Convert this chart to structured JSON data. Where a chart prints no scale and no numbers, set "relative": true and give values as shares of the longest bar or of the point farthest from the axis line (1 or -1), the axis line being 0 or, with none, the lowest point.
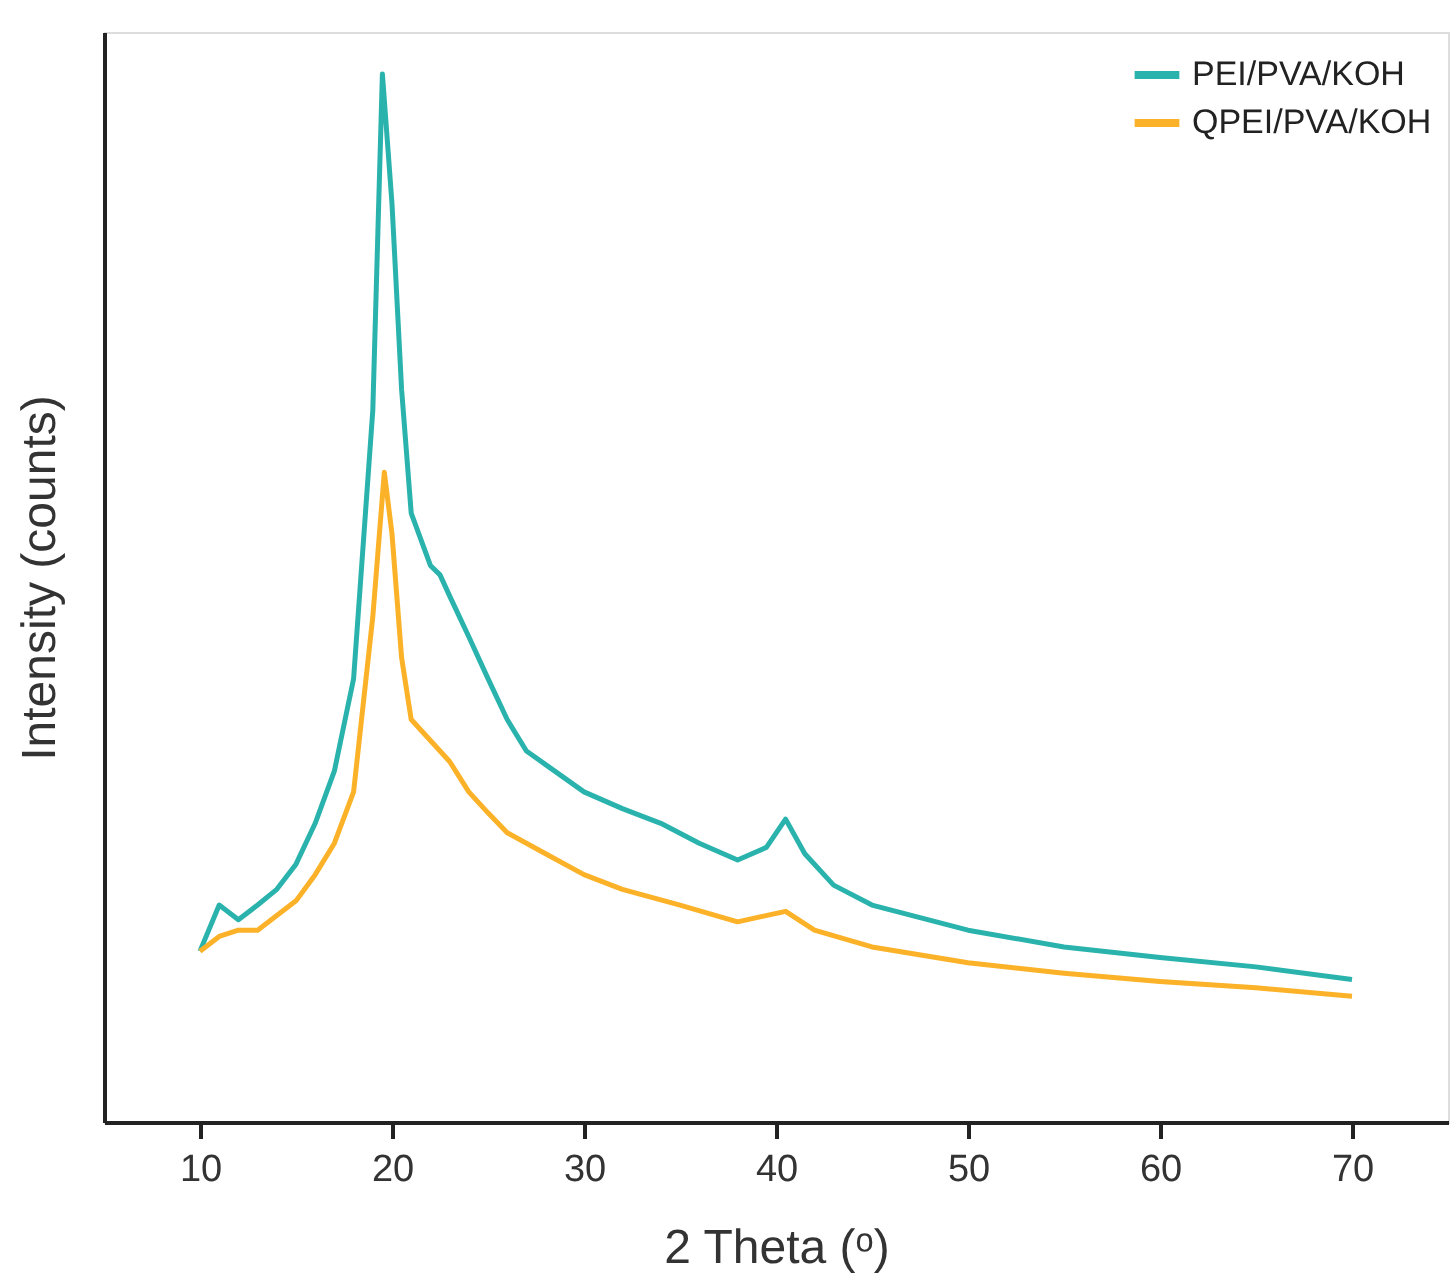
{
  "chart_data": {
    "type": "line",
    "xlabel": "2 Theta (ᵒ)",
    "ylabel": "Intensity (counts)",
    "relative": true,
    "xlim": [
      5,
      75
    ],
    "xticks": [
      10,
      20,
      30,
      40,
      50,
      60,
      70
    ],
    "grid": false,
    "legend": "top right",
    "line_style": "solid",
    "series": [
      {
        "name": "PEI/PVA/KOH",
        "color": "#2ab3ad",
        "x": [
          10,
          11,
          12,
          13,
          14,
          15,
          16,
          17,
          18,
          19,
          19.5,
          20,
          20.5,
          21,
          22,
          22.5,
          23,
          24,
          25,
          26,
          27,
          28,
          30,
          32,
          34,
          36,
          38,
          39.5,
          40.5,
          41.5,
          43,
          45,
          50,
          55,
          60,
          65,
          70
        ],
        "values": [
          0.163,
          0.207,
          0.193,
          0.207,
          0.222,
          0.246,
          0.285,
          0.335,
          0.423,
          0.679,
          1.0,
          0.876,
          0.699,
          0.581,
          0.531,
          0.522,
          0.502,
          0.463,
          0.423,
          0.384,
          0.354,
          0.341,
          0.315,
          0.299,
          0.285,
          0.266,
          0.25,
          0.262,
          0.289,
          0.256,
          0.226,
          0.207,
          0.183,
          0.167,
          0.157,
          0.148,
          0.136
        ]
      },
      {
        "name": "QPEI/PVA/KOH",
        "color": "#fbb228",
        "x": [
          10,
          11,
          12,
          13,
          14,
          15,
          16,
          17,
          18,
          19,
          19.6,
          20,
          20.5,
          21,
          22,
          23,
          24,
          25,
          26,
          28,
          30,
          32,
          35,
          38,
          40.5,
          42,
          45,
          50,
          55,
          60,
          65,
          70
        ],
        "values": [
          0.163,
          0.177,
          0.183,
          0.183,
          0.197,
          0.211,
          0.236,
          0.266,
          0.315,
          0.482,
          0.62,
          0.561,
          0.443,
          0.384,
          0.364,
          0.344,
          0.315,
          0.295,
          0.276,
          0.256,
          0.236,
          0.222,
          0.207,
          0.191,
          0.201,
          0.183,
          0.167,
          0.152,
          0.142,
          0.134,
          0.128,
          0.12
        ]
      }
    ]
  }
}
